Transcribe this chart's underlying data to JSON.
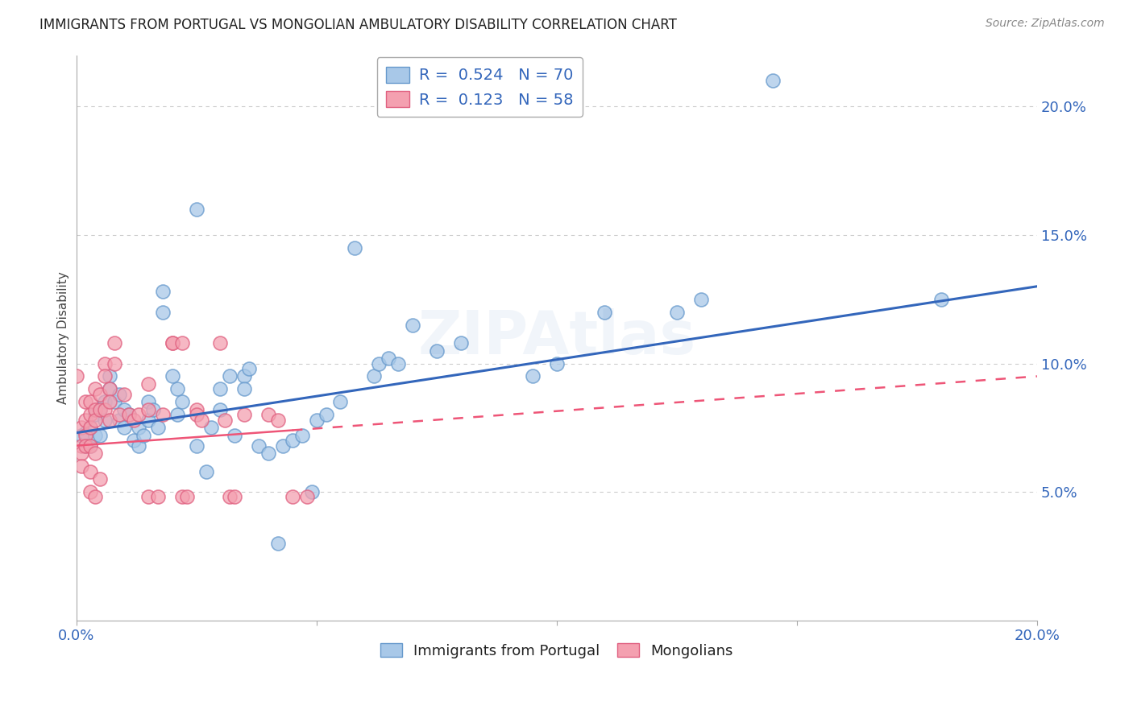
{
  "title": "IMMIGRANTS FROM PORTUGAL VS MONGOLIAN AMBULATORY DISABILITY CORRELATION CHART",
  "source": "Source: ZipAtlas.com",
  "ylabel": "Ambulatory Disability",
  "right_yticks": [
    "5.0%",
    "10.0%",
    "15.0%",
    "20.0%"
  ],
  "right_ytick_vals": [
    0.05,
    0.1,
    0.15,
    0.2
  ],
  "xmin": 0.0,
  "xmax": 0.2,
  "ymin": 0.0,
  "ymax": 0.22,
  "color_blue": "#a8c8e8",
  "color_blue_edge": "#6699cc",
  "color_pink": "#f4a0b0",
  "color_pink_edge": "#e06080",
  "color_blue_line": "#3366bb",
  "color_pink_line": "#ee5577",
  "watermark": "ZIPAtlas",
  "blue_scatter": [
    [
      0.001,
      0.072
    ],
    [
      0.002,
      0.073
    ],
    [
      0.002,
      0.068
    ],
    [
      0.003,
      0.075
    ],
    [
      0.003,
      0.068
    ],
    [
      0.004,
      0.072
    ],
    [
      0.004,
      0.08
    ],
    [
      0.005,
      0.082
    ],
    [
      0.005,
      0.072
    ],
    [
      0.006,
      0.085
    ],
    [
      0.006,
      0.078
    ],
    [
      0.007,
      0.095
    ],
    [
      0.007,
      0.09
    ],
    [
      0.008,
      0.085
    ],
    [
      0.009,
      0.088
    ],
    [
      0.009,
      0.078
    ],
    [
      0.01,
      0.082
    ],
    [
      0.01,
      0.075
    ],
    [
      0.011,
      0.08
    ],
    [
      0.012,
      0.07
    ],
    [
      0.013,
      0.075
    ],
    [
      0.013,
      0.068
    ],
    [
      0.014,
      0.072
    ],
    [
      0.015,
      0.085
    ],
    [
      0.015,
      0.078
    ],
    [
      0.016,
      0.082
    ],
    [
      0.017,
      0.075
    ],
    [
      0.018,
      0.12
    ],
    [
      0.018,
      0.128
    ],
    [
      0.02,
      0.095
    ],
    [
      0.021,
      0.09
    ],
    [
      0.021,
      0.08
    ],
    [
      0.022,
      0.085
    ],
    [
      0.025,
      0.16
    ],
    [
      0.025,
      0.068
    ],
    [
      0.027,
      0.058
    ],
    [
      0.028,
      0.075
    ],
    [
      0.03,
      0.09
    ],
    [
      0.03,
      0.082
    ],
    [
      0.032,
      0.095
    ],
    [
      0.033,
      0.072
    ],
    [
      0.035,
      0.095
    ],
    [
      0.035,
      0.09
    ],
    [
      0.036,
      0.098
    ],
    [
      0.038,
      0.068
    ],
    [
      0.04,
      0.065
    ],
    [
      0.043,
      0.068
    ],
    [
      0.045,
      0.07
    ],
    [
      0.047,
      0.072
    ],
    [
      0.049,
      0.05
    ],
    [
      0.05,
      0.078
    ],
    [
      0.052,
      0.08
    ],
    [
      0.055,
      0.085
    ],
    [
      0.058,
      0.145
    ],
    [
      0.062,
      0.095
    ],
    [
      0.063,
      0.1
    ],
    [
      0.065,
      0.102
    ],
    [
      0.067,
      0.1
    ],
    [
      0.07,
      0.115
    ],
    [
      0.075,
      0.105
    ],
    [
      0.08,
      0.108
    ],
    [
      0.095,
      0.095
    ],
    [
      0.1,
      0.1
    ],
    [
      0.11,
      0.12
    ],
    [
      0.125,
      0.12
    ],
    [
      0.13,
      0.125
    ],
    [
      0.145,
      0.21
    ],
    [
      0.18,
      0.125
    ],
    [
      0.042,
      0.03
    ]
  ],
  "pink_scatter": [
    [
      0.0,
      0.095
    ],
    [
      0.001,
      0.075
    ],
    [
      0.001,
      0.068
    ],
    [
      0.001,
      0.065
    ],
    [
      0.001,
      0.06
    ],
    [
      0.002,
      0.085
    ],
    [
      0.002,
      0.078
    ],
    [
      0.002,
      0.072
    ],
    [
      0.002,
      0.068
    ],
    [
      0.003,
      0.085
    ],
    [
      0.003,
      0.08
    ],
    [
      0.003,
      0.075
    ],
    [
      0.003,
      0.068
    ],
    [
      0.003,
      0.058
    ],
    [
      0.003,
      0.05
    ],
    [
      0.004,
      0.09
    ],
    [
      0.004,
      0.082
    ],
    [
      0.004,
      0.078
    ],
    [
      0.004,
      0.065
    ],
    [
      0.004,
      0.048
    ],
    [
      0.005,
      0.088
    ],
    [
      0.005,
      0.082
    ],
    [
      0.005,
      0.055
    ],
    [
      0.006,
      0.1
    ],
    [
      0.006,
      0.095
    ],
    [
      0.006,
      0.082
    ],
    [
      0.007,
      0.09
    ],
    [
      0.007,
      0.085
    ],
    [
      0.007,
      0.078
    ],
    [
      0.008,
      0.1
    ],
    [
      0.008,
      0.108
    ],
    [
      0.009,
      0.08
    ],
    [
      0.01,
      0.088
    ],
    [
      0.011,
      0.08
    ],
    [
      0.012,
      0.078
    ],
    [
      0.013,
      0.08
    ],
    [
      0.015,
      0.092
    ],
    [
      0.015,
      0.082
    ],
    [
      0.015,
      0.048
    ],
    [
      0.017,
      0.048
    ],
    [
      0.018,
      0.08
    ],
    [
      0.02,
      0.108
    ],
    [
      0.02,
      0.108
    ],
    [
      0.022,
      0.108
    ],
    [
      0.022,
      0.048
    ],
    [
      0.023,
      0.048
    ],
    [
      0.025,
      0.082
    ],
    [
      0.025,
      0.08
    ],
    [
      0.026,
      0.078
    ],
    [
      0.03,
      0.108
    ],
    [
      0.031,
      0.078
    ],
    [
      0.032,
      0.048
    ],
    [
      0.033,
      0.048
    ],
    [
      0.035,
      0.08
    ],
    [
      0.04,
      0.08
    ],
    [
      0.042,
      0.078
    ],
    [
      0.045,
      0.048
    ],
    [
      0.048,
      0.048
    ]
  ],
  "blue_line_solid": [
    [
      0.0,
      0.073
    ],
    [
      0.2,
      0.13
    ]
  ],
  "pink_line_solid": [
    [
      0.0,
      0.068
    ],
    [
      0.045,
      0.074
    ]
  ],
  "pink_line_dashed": [
    [
      0.045,
      0.074
    ],
    [
      0.2,
      0.095
    ]
  ],
  "background_color": "#ffffff",
  "grid_color": "#cccccc",
  "title_color": "#222222",
  "axis_label_color": "#444444",
  "source_color": "#888888",
  "tick_color": "#3366bb"
}
